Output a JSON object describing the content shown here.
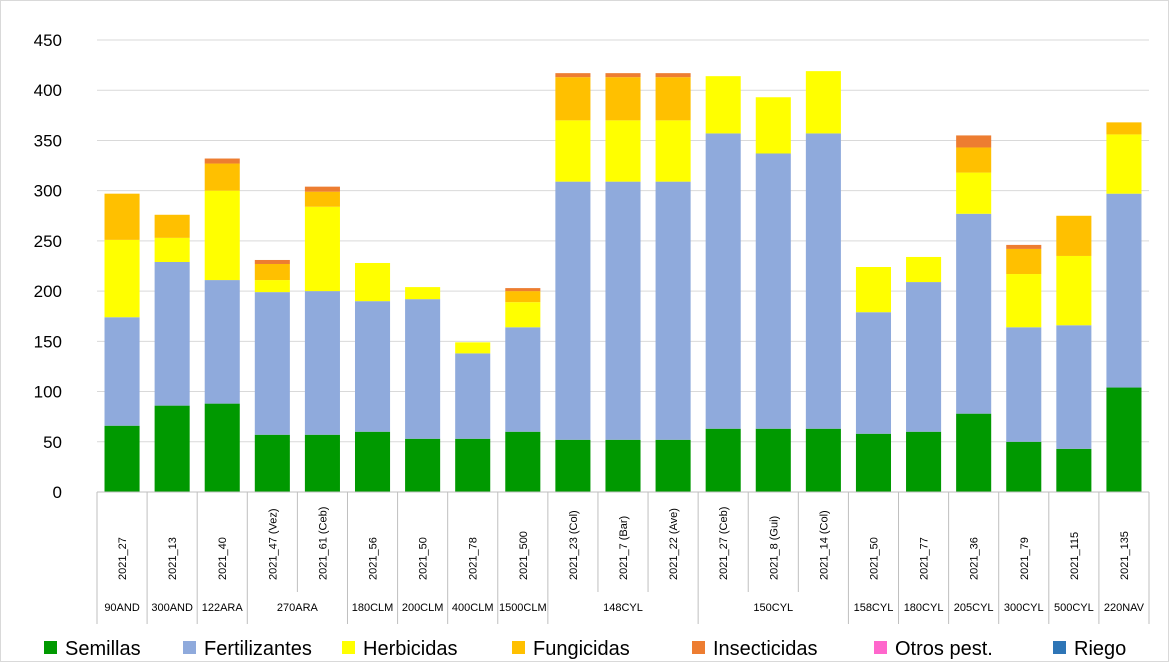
{
  "chart_data": {
    "type": "bar",
    "stacked": true,
    "title": "",
    "xlabel": "",
    "ylabel": "",
    "ylim": [
      0,
      450
    ],
    "yticks": [
      0,
      50,
      100,
      150,
      200,
      250,
      300,
      350,
      400,
      450
    ],
    "grid": true,
    "legend_position": "bottom",
    "categories": [
      "2021_27",
      "2021_13",
      "2021_40",
      "2021_47 (Vez)",
      "2021_61 (Ceb)",
      "2021_56",
      "2021_50",
      "2021_78",
      "2021_500",
      "2021_23 (Col)",
      "2021_7 (Bar)",
      "2021_22 (Ave)",
      "2021_27 (Ceb)",
      "2021_8 (Gui)",
      "2021_14 (Col)",
      "2021_50",
      "2021_77",
      "2021_36",
      "2021_79",
      "2021_115",
      "2021_135"
    ],
    "groups": [
      {
        "label": "90AND",
        "span": 1
      },
      {
        "label": "300AND",
        "span": 1
      },
      {
        "label": "122ARA",
        "span": 1
      },
      {
        "label": "270ARA",
        "span": 2
      },
      {
        "label": "180CLM",
        "span": 1
      },
      {
        "label": "200CLM",
        "span": 1
      },
      {
        "label": "400CLM",
        "span": 1
      },
      {
        "label": "1500CLM",
        "span": 1
      },
      {
        "label": "148CYL",
        "span": 3
      },
      {
        "label": "150CYL",
        "span": 3
      },
      {
        "label": "158CYL",
        "span": 1
      },
      {
        "label": "180CYL",
        "span": 1
      },
      {
        "label": "205CYL",
        "span": 1
      },
      {
        "label": "300CYL",
        "span": 1
      },
      {
        "label": "500CYL",
        "span": 1
      },
      {
        "label": "220NAV",
        "span": 1
      }
    ],
    "series": [
      {
        "name": "Semillas",
        "color": "#009900",
        "values": [
          66,
          86,
          88,
          57,
          57,
          60,
          53,
          53,
          60,
          52,
          52,
          52,
          63,
          63,
          63,
          58,
          60,
          78,
          50,
          43,
          104
        ]
      },
      {
        "name": "Fertilizantes",
        "color": "#8faadc",
        "values": [
          108,
          143,
          123,
          142,
          143,
          130,
          139,
          85,
          104,
          257,
          257,
          257,
          294,
          274,
          294,
          121,
          149,
          199,
          114,
          123,
          193
        ]
      },
      {
        "name": "Herbicidas",
        "color": "#ffff00",
        "values": [
          77,
          24,
          89,
          12,
          84,
          38,
          12,
          11,
          25,
          61,
          61,
          61,
          57,
          56,
          62,
          45,
          25,
          41,
          53,
          69,
          59
        ]
      },
      {
        "name": "Fungicidas",
        "color": "#ffc000",
        "values": [
          46,
          23,
          27,
          16,
          15,
          0,
          0,
          0,
          11,
          43,
          43,
          43,
          0,
          0,
          0,
          0,
          0,
          25,
          25,
          40,
          12
        ]
      },
      {
        "name": "Insecticidas",
        "color": "#ed7d31",
        "values": [
          0,
          0,
          5,
          4,
          5,
          0,
          0,
          0,
          3,
          4,
          4,
          4,
          0,
          0,
          0,
          0,
          0,
          12,
          4,
          0,
          0
        ]
      },
      {
        "name": "Otros pest.",
        "color": "#ff66cc",
        "values": [
          0,
          0,
          0,
          0,
          0,
          0,
          0,
          0,
          0,
          0,
          0,
          0,
          0,
          0,
          0,
          0,
          0,
          0,
          0,
          0,
          0
        ]
      },
      {
        "name": "Riego",
        "color": "#2e75b6",
        "values": [
          0,
          0,
          0,
          0,
          0,
          0,
          0,
          0,
          0,
          0,
          0,
          0,
          0,
          0,
          0,
          0,
          0,
          0,
          0,
          0,
          0
        ]
      }
    ]
  }
}
